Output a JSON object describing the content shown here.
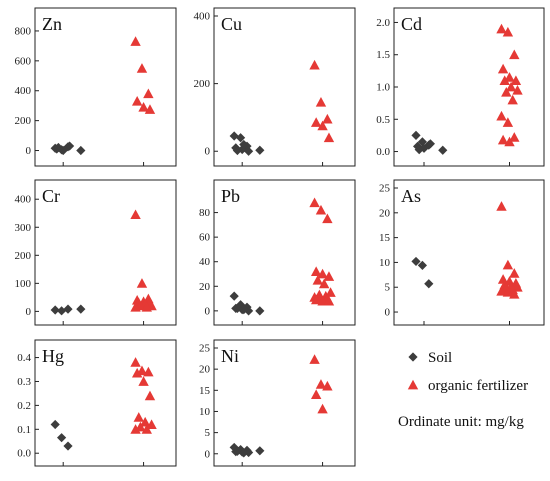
{
  "colors": {
    "soil": "#3d3d3d",
    "fertilizer": "#e53935",
    "frame": "#222222"
  },
  "legend": {
    "soil_label": "Soil",
    "fertilizer_label": "organic fertilizer",
    "unit_note": "Ordinate unit: mg/kg",
    "soil_marker": "diamond",
    "fertilizer_marker": "triangle"
  },
  "chart_data": [
    {
      "type": "scatter",
      "title": "Zn",
      "ylim": [
        -50,
        900
      ],
      "yticks": [
        "0",
        "200",
        "400",
        "600",
        "800"
      ],
      "series": [
        {
          "name": "Soil",
          "x": [
            1,
            1,
            1,
            1,
            1,
            1,
            1,
            1.3
          ],
          "y": [
            15,
            5,
            25,
            10,
            0,
            30,
            20,
            0
          ]
        },
        {
          "name": "organic fertilizer",
          "x": [
            2,
            2,
            2,
            2,
            2,
            2
          ],
          "y": [
            730,
            550,
            380,
            330,
            290,
            275
          ]
        }
      ]
    },
    {
      "type": "scatter",
      "title": "Cu",
      "ylim": [
        -20,
        400
      ],
      "yticks": [
        "0",
        "200",
        "400"
      ],
      "series": [
        {
          "name": "Soil",
          "x": [
            1,
            1,
            1,
            1,
            1,
            1,
            1,
            1,
            1.3
          ],
          "y": [
            45,
            40,
            15,
            10,
            5,
            0,
            2,
            20,
            3
          ]
        },
        {
          "name": "organic fertilizer",
          "x": [
            2,
            2,
            2,
            2,
            2,
            2
          ],
          "y": [
            255,
            145,
            95,
            85,
            75,
            40
          ]
        }
      ]
    },
    {
      "type": "scatter",
      "title": "Cd",
      "ylim": [
        -0.1,
        2.1
      ],
      "yticks": [
        "0.0",
        "0.5",
        "1.0",
        "1.5",
        "2.0"
      ],
      "series": [
        {
          "name": "Soil",
          "x": [
            1,
            1,
            1,
            1,
            1,
            1,
            1,
            1.3
          ],
          "y": [
            0.25,
            0.15,
            0.1,
            0.08,
            0.05,
            0.12,
            0.03,
            0.02
          ]
        },
        {
          "name": "organic fertilizer",
          "x": [
            2,
            2,
            2,
            2,
            2,
            2,
            2,
            2,
            2,
            2,
            2,
            2,
            2,
            2,
            2,
            2
          ],
          "y": [
            1.9,
            1.85,
            1.5,
            1.28,
            1.15,
            1.1,
            1.1,
            1.0,
            0.95,
            0.92,
            0.8,
            0.55,
            0.45,
            0.22,
            0.18,
            0.15
          ]
        }
      ]
    },
    {
      "type": "scatter",
      "title": "Cr",
      "ylim": [
        -20,
        440
      ],
      "yticks": [
        "0",
        "100",
        "200",
        "300",
        "400"
      ],
      "series": [
        {
          "name": "Soil",
          "x": [
            1,
            1,
            1,
            1.3
          ],
          "y": [
            5,
            2,
            8,
            8
          ]
        },
        {
          "name": "organic fertilizer",
          "x": [
            2,
            2,
            2,
            2,
            2,
            2,
            2,
            2,
            2,
            2,
            2,
            2
          ],
          "y": [
            345,
            100,
            45,
            40,
            35,
            30,
            30,
            25,
            20,
            20,
            15,
            15
          ]
        }
      ]
    },
    {
      "type": "scatter",
      "title": "Pb",
      "ylim": [
        -5,
        100
      ],
      "yticks": [
        "0",
        "20",
        "40",
        "60",
        "80"
      ],
      "series": [
        {
          "name": "Soil",
          "x": [
            1,
            1,
            1,
            1,
            1,
            1,
            1,
            1,
            1.3
          ],
          "y": [
            12,
            5,
            3,
            2,
            1,
            0,
            2,
            1,
            0
          ]
        },
        {
          "name": "organic fertilizer",
          "x": [
            2,
            2,
            2,
            2,
            2,
            2,
            2,
            2,
            2,
            2,
            2,
            2,
            2,
            2,
            2,
            2,
            2
          ],
          "y": [
            88,
            82,
            75,
            32,
            30,
            28,
            25,
            22,
            15,
            13,
            12,
            11,
            10,
            10,
            9,
            8,
            8
          ]
        }
      ]
    },
    {
      "type": "scatter",
      "title": "As",
      "ylim": [
        -1,
        25
      ],
      "yticks": [
        "0",
        "5",
        "10",
        "15",
        "20",
        "25"
      ],
      "series": [
        {
          "name": "Soil",
          "x": [
            1,
            1,
            1
          ],
          "y": [
            10.2,
            9.4,
            5.7
          ]
        },
        {
          "name": "organic fertilizer",
          "x": [
            2,
            2,
            2,
            2,
            2,
            2,
            2,
            2,
            2,
            2,
            2,
            2,
            2,
            2
          ],
          "y": [
            21.3,
            9.5,
            7.8,
            6.6,
            6.2,
            5.8,
            5.5,
            5.2,
            5.0,
            4.8,
            4.5,
            4.2,
            4.0,
            3.6
          ]
        }
      ]
    },
    {
      "type": "scatter",
      "title": "Hg",
      "ylim": [
        -0.02,
        0.44
      ],
      "yticks": [
        "0.0",
        "0.1",
        "0.2",
        "0.3",
        "0.4"
      ],
      "series": [
        {
          "name": "Soil",
          "x": [
            1,
            1,
            1
          ],
          "y": [
            0.12,
            0.065,
            0.03
          ]
        },
        {
          "name": "organic fertilizer",
          "x": [
            2,
            2,
            2,
            2,
            2,
            2,
            2,
            2,
            2,
            2,
            2,
            2
          ],
          "y": [
            0.38,
            0.345,
            0.34,
            0.335,
            0.3,
            0.24,
            0.15,
            0.13,
            0.12,
            0.11,
            0.1,
            0.1
          ]
        }
      ]
    },
    {
      "type": "scatter",
      "title": "Ni",
      "ylim": [
        -1,
        25
      ],
      "yticks": [
        "0",
        "5",
        "10",
        "15",
        "20",
        "25"
      ],
      "series": [
        {
          "name": "Soil",
          "x": [
            1,
            1,
            1,
            1,
            1,
            1,
            1,
            1,
            1.3
          ],
          "y": [
            1.5,
            1.0,
            0.8,
            0.5,
            0.4,
            0.3,
            0.6,
            0.2,
            0.7
          ]
        },
        {
          "name": "organic fertilizer",
          "x": [
            2,
            2,
            2,
            2,
            2
          ],
          "y": [
            22.3,
            16.4,
            16.0,
            14.0,
            10.6
          ]
        }
      ]
    }
  ]
}
